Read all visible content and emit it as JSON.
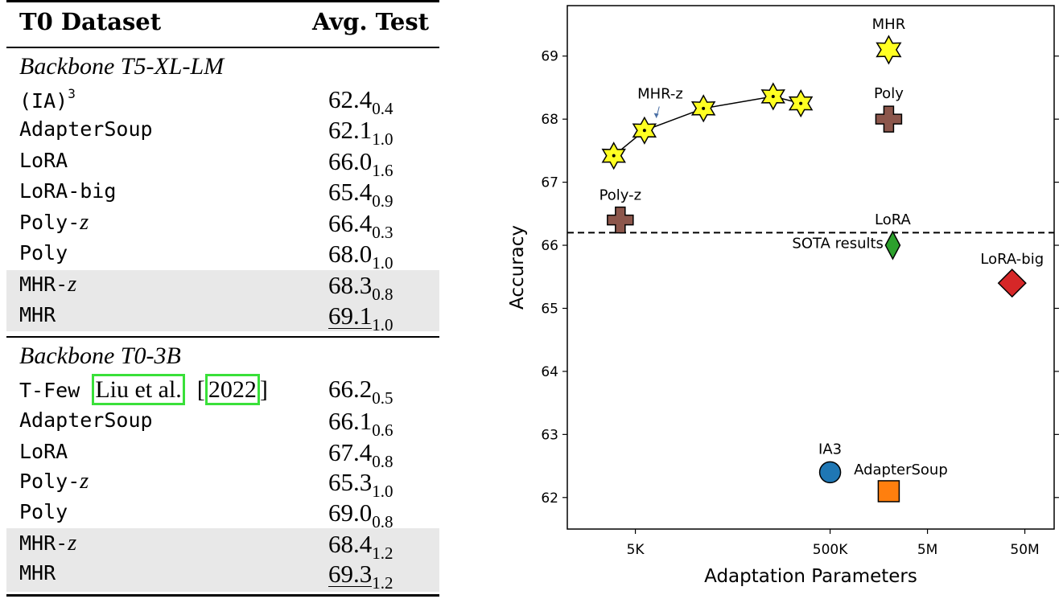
{
  "table": {
    "header": {
      "dataset": "T0 Dataset",
      "avg_test": "Avg. Test"
    },
    "sections": [
      {
        "title": "Backbone T5-XL-LM",
        "rows": [
          {
            "method": "(IA)",
            "sup": "3",
            "value": "62.4",
            "std": "0.4"
          },
          {
            "method": "AdapterSoup",
            "value": "62.1",
            "std": "1.0"
          },
          {
            "method": "LoRA",
            "value": "66.0",
            "std": "1.6"
          },
          {
            "method": "LoRA-big",
            "value": "65.4",
            "std": "0.9"
          },
          {
            "method": "Poly-",
            "z": "z",
            "value": "66.4",
            "std": "0.3"
          },
          {
            "method": "Poly",
            "value": "68.0",
            "std": "1.0"
          },
          {
            "method": "MHR-",
            "z": "z",
            "value": "68.3",
            "std": "0.8"
          },
          {
            "method": "MHR",
            "value": "69.1",
            "std": "1.0"
          }
        ]
      },
      {
        "title": "Backbone T0-3B",
        "rows": [
          {
            "method": "T-Few",
            "cite_author": "Liu et al.",
            "cite_open": "[",
            "cite_year": "2022",
            "cite_close": "]",
            "value": "66.2",
            "std": "0.5"
          },
          {
            "method": "AdapterSoup",
            "value": "66.1",
            "std": "0.6"
          },
          {
            "method": "LoRA",
            "value": "67.4",
            "std": "0.8"
          },
          {
            "method": "Poly-",
            "z": "z",
            "value": "65.3",
            "std": "1.0"
          },
          {
            "method": "Poly",
            "value": "69.0",
            "std": "0.8"
          },
          {
            "method": "MHR-",
            "z": "z",
            "value": "68.4",
            "std": "1.2"
          },
          {
            "method": "MHR",
            "value": "69.3",
            "std": "1.2"
          }
        ]
      }
    ]
  },
  "chart_data": {
    "type": "scatter",
    "title": "",
    "xlabel": "Adaptation Parameters",
    "ylabel": "Accuracy",
    "xscale": "log",
    "xlim": [
      1000,
      100000000
    ],
    "ylim": [
      61.5,
      69.8
    ],
    "xticks": [
      {
        "value": 5000,
        "label": "5K"
      },
      {
        "value": 500000,
        "label": "500K"
      },
      {
        "value": 5000000,
        "label": "5M"
      },
      {
        "value": 50000000,
        "label": "50M"
      }
    ],
    "yticks": [
      {
        "value": 62,
        "label": "62"
      },
      {
        "value": 63,
        "label": "63"
      },
      {
        "value": 64,
        "label": "64"
      },
      {
        "value": 65,
        "label": "65"
      },
      {
        "value": 66,
        "label": "66"
      },
      {
        "value": 67,
        "label": "67"
      },
      {
        "value": 68,
        "label": "68"
      },
      {
        "value": 69,
        "label": "69"
      }
    ],
    "points": [
      {
        "label": "MHR",
        "x": 2000000,
        "y": 69.1,
        "marker": "star",
        "color": "#ffff22"
      },
      {
        "label": "Poly",
        "x": 2000000,
        "y": 68.0,
        "marker": "plus",
        "color": "#8c564b"
      },
      {
        "label": "LoRA",
        "x": 2200000,
        "y": 66.0,
        "marker": "diamond",
        "color": "#2ca02c"
      },
      {
        "label": "LoRA-big",
        "x": 37000000,
        "y": 65.4,
        "marker": "diamond",
        "color": "#d62728"
      },
      {
        "label": "Poly-z",
        "x": 3500,
        "y": 66.4,
        "marker": "plus",
        "color": "#8c564b"
      },
      {
        "label": "IA3",
        "x": 500000,
        "y": 62.4,
        "marker": "circle",
        "color": "#1f77b4"
      },
      {
        "label": "AdapterSoup",
        "x": 2000000,
        "y": 62.1,
        "marker": "square",
        "color": "#ff7f0e"
      }
    ],
    "series": [
      {
        "name": "MHR-z",
        "marker": "star",
        "color": "#ffff22",
        "x": [
          3000,
          6200,
          25000,
          130000,
          250000
        ],
        "y": [
          67.42,
          67.82,
          68.17,
          68.36,
          68.25
        ]
      }
    ],
    "reference_line": {
      "y": 66.2,
      "style": "dashed",
      "label": "SOTA results"
    }
  }
}
